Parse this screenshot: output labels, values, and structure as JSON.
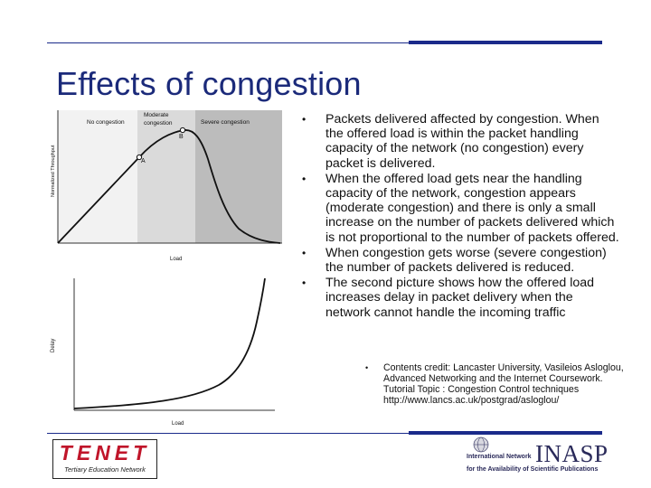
{
  "slide": {
    "title": "Effects of congestion",
    "bullets": [
      "Packets delivered affected by congestion. When the offered load is within the packet handling capacity of the network (no congestion) every packet is delivered.",
      "When the offered load gets near the handling capacity of the network, congestion appears (moderate congestion) and there is only a small increase on the number of packets delivered which is not proportional to the number of packets offered.",
      "When congestion gets worse (severe congestion) the number of packets delivered is reduced.",
      "The second picture shows how the offered load increases delay in packet delivery when the network cannot handle the incoming traffic"
    ],
    "credit": "Contents credit: Lancaster University, Vasileios Asloglou, Advanced Networking and the Internet Coursework. Tutorial Topic : Congestion Control techniques http://www.lancs.ac.uk/postgrad/asloglou/",
    "bullet_glyph": "•"
  },
  "figure_throughput": {
    "zone_no": "No congestion",
    "zone_moderate_1": "Moderate",
    "zone_moderate_2": "congestion",
    "zone_severe": "Severe congestion",
    "ylabel": "Normalized Throughput",
    "xlabel": "Load",
    "point_a": "A",
    "point_b": "B"
  },
  "figure_delay": {
    "ylabel": "Delay",
    "xlabel": "Load"
  },
  "logos": {
    "tenet_word": "TENET",
    "tenet_tagline": "Tertiary Education Network",
    "inasp_word": "INASP",
    "inasp_line1": "International Network",
    "inasp_line2": "for the Availability of Scientific Publications"
  },
  "colors": {
    "rule": "#1a2a8a",
    "title": "#1b2a7a",
    "tenet_red": "#c0152a"
  }
}
